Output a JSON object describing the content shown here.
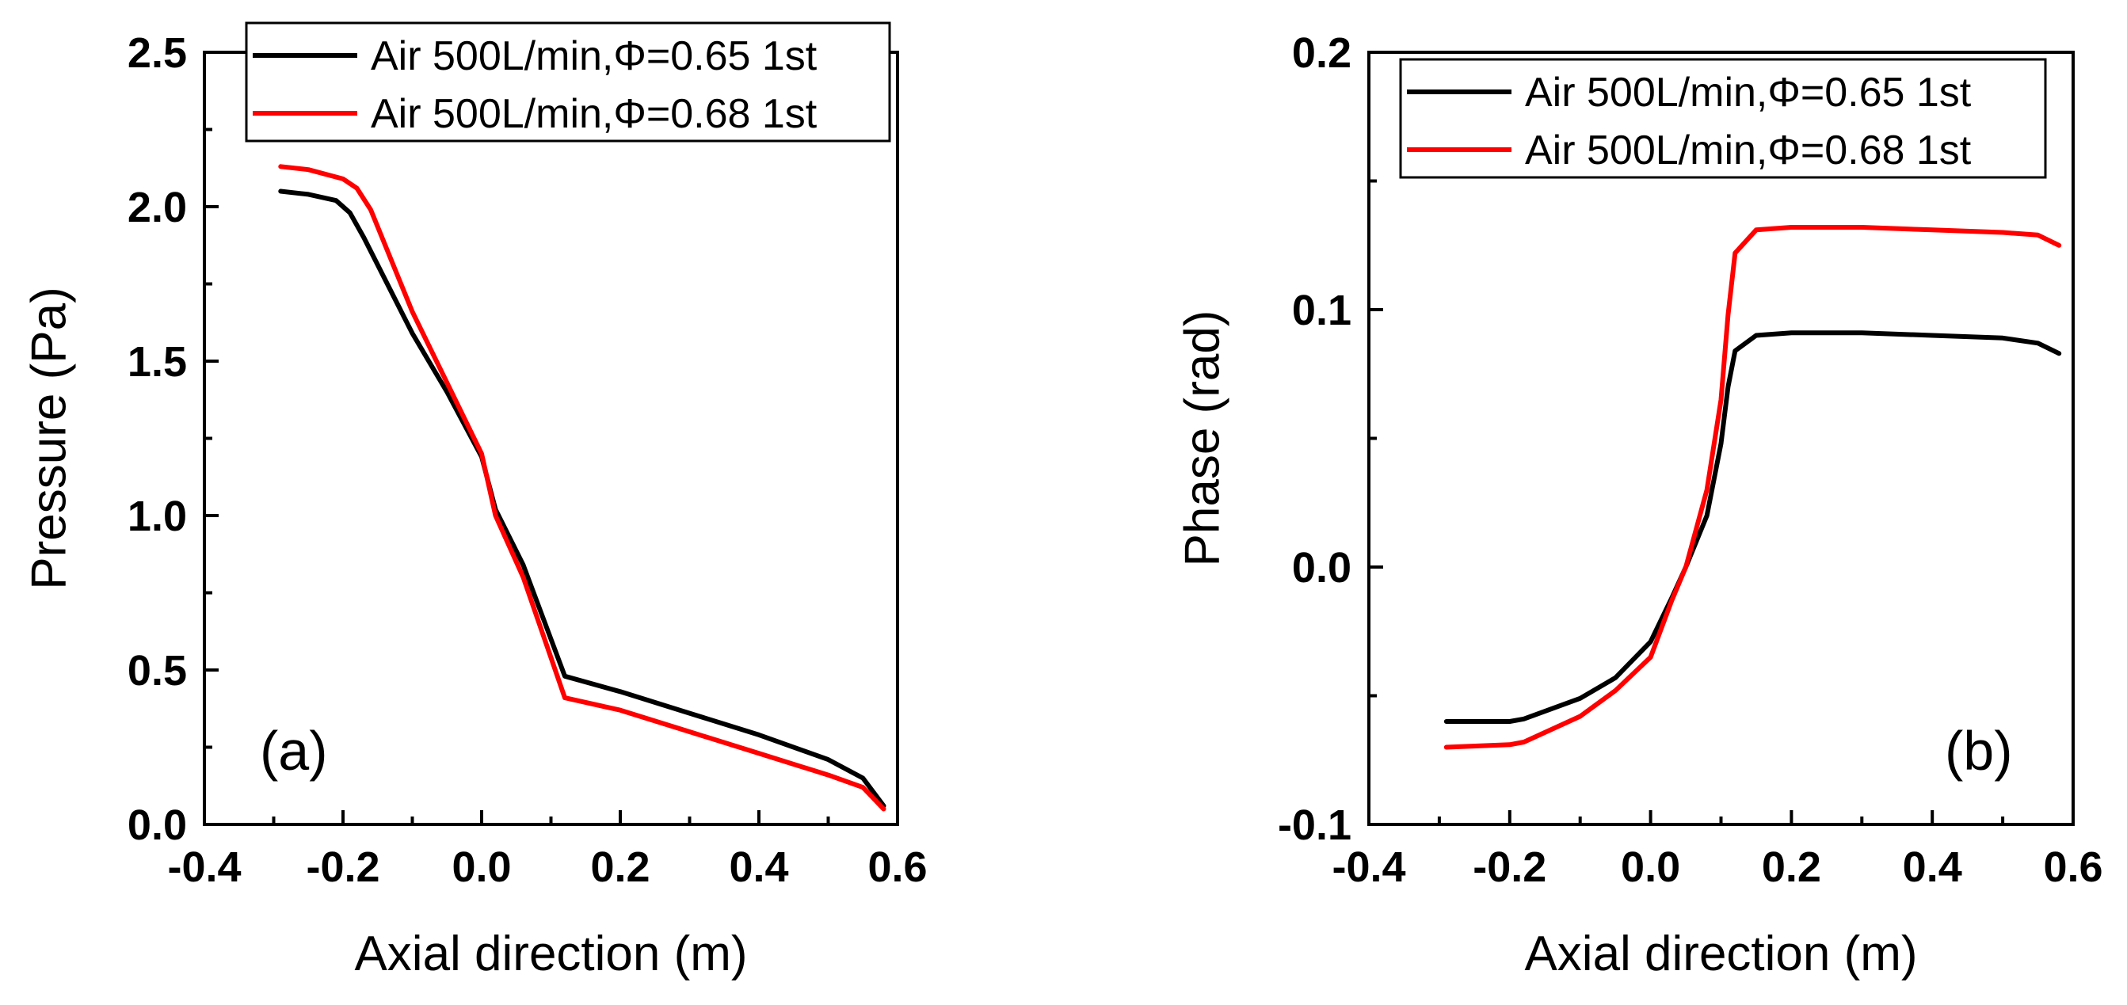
{
  "chart_data": [
    {
      "type": "line",
      "panel_label": "(a)",
      "title": "",
      "xlabel": "Axial direction (m)",
      "ylabel": "Pressure (Pa)",
      "xlim": [
        -0.4,
        0.6
      ],
      "ylim": [
        0.0,
        2.5
      ],
      "xticks": [
        -0.4,
        -0.2,
        0.0,
        0.2,
        0.4,
        0.6
      ],
      "xtick_labels": [
        "-0.4",
        "-0.2",
        "0.0",
        "0.2",
        "0.4",
        "0.6"
      ],
      "yticks": [
        0.0,
        0.5,
        1.0,
        1.5,
        2.0,
        2.5
      ],
      "ytick_labels": [
        "0.0",
        "0.5",
        "1.0",
        "1.5",
        "2.0",
        "2.5"
      ],
      "grid": false,
      "legend_position": "top-right",
      "series": [
        {
          "name": "Air 500L/min,Φ=0.65 1st",
          "color": "#000000",
          "x": [
            -0.29,
            -0.25,
            -0.21,
            -0.19,
            -0.17,
            -0.1,
            -0.05,
            0.0,
            0.02,
            0.06,
            0.1,
            0.12,
            0.2,
            0.3,
            0.4,
            0.5,
            0.55,
            0.58
          ],
          "y": [
            2.05,
            2.04,
            2.02,
            1.98,
            1.9,
            1.59,
            1.4,
            1.19,
            1.02,
            0.84,
            0.6,
            0.48,
            0.43,
            0.36,
            0.29,
            0.21,
            0.15,
            0.06
          ]
        },
        {
          "name": "Air 500L/min,Φ=0.68 1st",
          "color": "#ff0000",
          "x": [
            -0.29,
            -0.25,
            -0.2,
            -0.18,
            -0.16,
            -0.1,
            -0.05,
            0.0,
            0.02,
            0.06,
            0.1,
            0.12,
            0.2,
            0.3,
            0.4,
            0.5,
            0.55,
            0.58
          ],
          "y": [
            2.13,
            2.12,
            2.09,
            2.06,
            1.99,
            1.66,
            1.43,
            1.2,
            1.0,
            0.8,
            0.54,
            0.41,
            0.37,
            0.3,
            0.23,
            0.16,
            0.12,
            0.05
          ]
        }
      ]
    },
    {
      "type": "line",
      "panel_label": "(b)",
      "title": "",
      "xlabel": "Axial direction (m)",
      "ylabel": "Phase (rad)",
      "xlim": [
        -0.4,
        0.6
      ],
      "ylim": [
        -0.1,
        0.2
      ],
      "xticks": [
        -0.4,
        -0.2,
        0.0,
        0.2,
        0.4,
        0.6
      ],
      "xtick_labels": [
        "-0.4",
        "-0.2",
        "0.0",
        "0.2",
        "0.4",
        "0.6"
      ],
      "yticks": [
        -0.1,
        0.0,
        0.1,
        0.2
      ],
      "ytick_labels": [
        "-0.1",
        "0.0",
        "0.1",
        "0.2"
      ],
      "grid": false,
      "legend_position": "top-right",
      "series": [
        {
          "name": "Air 500L/min,Φ=0.65 1st",
          "color": "#000000",
          "x": [
            -0.29,
            -0.2,
            -0.18,
            -0.1,
            -0.05,
            0.0,
            0.03,
            0.05,
            0.08,
            0.1,
            0.11,
            0.12,
            0.15,
            0.2,
            0.3,
            0.4,
            0.5,
            0.55,
            0.58
          ],
          "y": [
            -0.06,
            -0.06,
            -0.059,
            -0.051,
            -0.043,
            -0.029,
            -0.012,
            0.0,
            0.02,
            0.048,
            0.07,
            0.084,
            0.09,
            0.091,
            0.091,
            0.09,
            0.089,
            0.087,
            0.083
          ]
        },
        {
          "name": "Air 500L/min,Φ=0.68 1st",
          "color": "#ff0000",
          "x": [
            -0.29,
            -0.2,
            -0.18,
            -0.1,
            -0.05,
            0.0,
            0.03,
            0.05,
            0.08,
            0.1,
            0.11,
            0.12,
            0.15,
            0.2,
            0.3,
            0.4,
            0.5,
            0.55,
            0.58
          ],
          "y": [
            -0.07,
            -0.069,
            -0.068,
            -0.058,
            -0.048,
            -0.035,
            -0.013,
            0.0,
            0.03,
            0.065,
            0.098,
            0.122,
            0.131,
            0.132,
            0.132,
            0.131,
            0.13,
            0.129,
            0.125
          ]
        }
      ]
    }
  ]
}
